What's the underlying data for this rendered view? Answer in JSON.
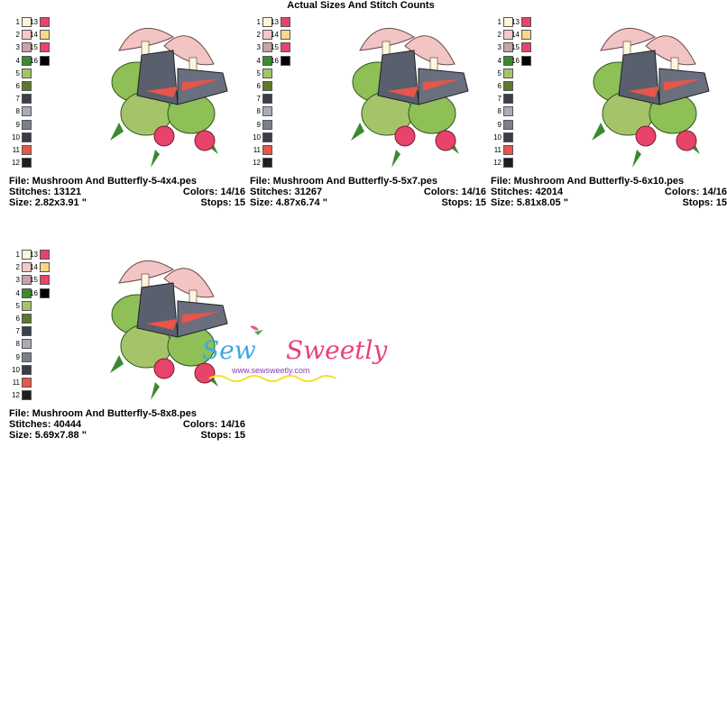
{
  "title": "Actual Sizes And Stitch Counts",
  "palette": {
    "left": [
      {
        "n": "1",
        "color": "#fdf6dc"
      },
      {
        "n": "2",
        "color": "#f6c9c9"
      },
      {
        "n": "3",
        "color": "#c9a2a8"
      },
      {
        "n": "4",
        "color": "#3a8a2e"
      },
      {
        "n": "5",
        "color": "#a5c46a"
      },
      {
        "n": "6",
        "color": "#5c7a2a"
      },
      {
        "n": "7",
        "color": "#3b3f4a"
      },
      {
        "n": "8",
        "color": "#a9acb7"
      },
      {
        "n": "9",
        "color": "#7a7f8c"
      },
      {
        "n": "10",
        "color": "#3a3d48"
      },
      {
        "n": "11",
        "color": "#e8554a"
      },
      {
        "n": "12",
        "color": "#1d1d1d"
      }
    ],
    "right": [
      {
        "n": "13",
        "color": "#e8436a"
      },
      {
        "n": "14",
        "color": "#f7d889"
      },
      {
        "n": "15",
        "color": "#e8436a"
      },
      {
        "n": "16",
        "color": "#000000"
      }
    ]
  },
  "designs": [
    {
      "file": "File: Mushroom And Butterfly-5-4x4.pes",
      "stitches": "Stitches: 13121",
      "colors": "Colors: 14/16",
      "size": "Size: 2.82x3.91 \"",
      "stops": "Stops: 15"
    },
    {
      "file": "File: Mushroom And Butterfly-5-5x7.pes",
      "stitches": "Stitches: 31267",
      "colors": "Colors: 14/16",
      "size": "Size: 4.87x6.74 \"",
      "stops": "Stops: 15"
    },
    {
      "file": "File: Mushroom And Butterfly-5-6x10.pes",
      "stitches": "Stitches: 42014",
      "colors": "Colors: 14/16",
      "size": "Size: 5.81x8.05 \"",
      "stops": "Stops: 15"
    },
    {
      "file": "File: Mushroom And Butterfly-5-8x8.pes",
      "stitches": "Stitches: 40444",
      "colors": "Colors: 14/16",
      "size": "Size: 5.69x7.88 \"",
      "stops": "Stops: 15"
    }
  ],
  "logo": {
    "brand": "Sew Sweetly",
    "url": "www.sewsweetly.com"
  }
}
